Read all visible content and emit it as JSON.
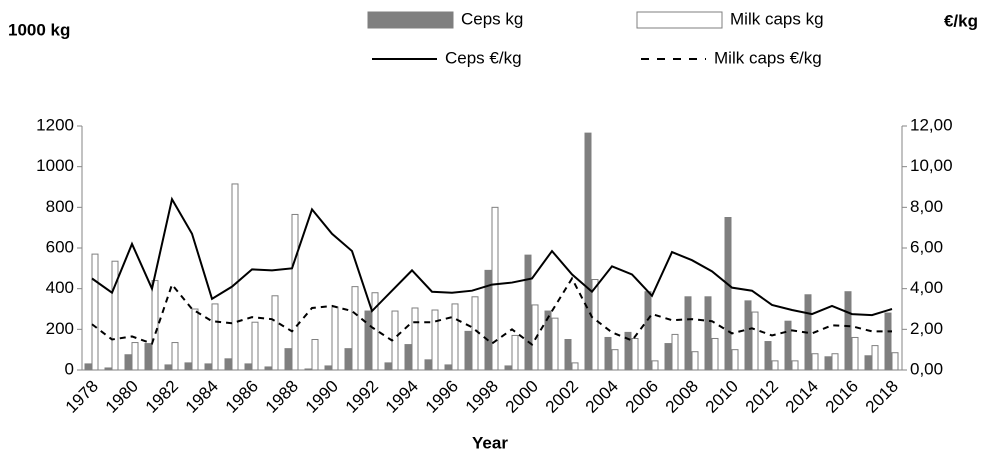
{
  "chart_data": {
    "type": "combo",
    "y_label": "1000 kg",
    "y2_label": "€/kg",
    "x_label": "Year",
    "categories": [
      "1978",
      null,
      "1980",
      null,
      "1982",
      null,
      "1984",
      null,
      "1986",
      null,
      "1988",
      null,
      "1990",
      null,
      "1992",
      null,
      "1994",
      null,
      "1996",
      null,
      "1998",
      null,
      "2000",
      null,
      "2002",
      null,
      "2004",
      null,
      "2006",
      null,
      "2008",
      null,
      "2010",
      null,
      "2012",
      null,
      "2014",
      null,
      "2016",
      null,
      "2018"
    ],
    "series": [
      {
        "name": "Ceps kg",
        "type": "bar",
        "color": "#7f7f7f",
        "fill": "#7f7f7f",
        "values": [
          30,
          10,
          75,
          130,
          25,
          35,
          30,
          55,
          30,
          15,
          105,
          5,
          20,
          105,
          290,
          35,
          125,
          50,
          25,
          190,
          490,
          20,
          565,
          290,
          150,
          1165,
          160,
          185,
          385,
          130,
          360,
          360,
          750,
          340,
          140,
          240,
          370,
          65,
          385,
          70,
          280
        ]
      },
      {
        "name": "Milk caps kg",
        "type": "bar",
        "color": "#7f7f7f",
        "fill": "#ffffff",
        "values": [
          570,
          535,
          135,
          440,
          135,
          300,
          325,
          915,
          235,
          365,
          765,
          150,
          310,
          410,
          380,
          290,
          305,
          295,
          325,
          360,
          800,
          170,
          320,
          255,
          35,
          445,
          100,
          155,
          45,
          175,
          90,
          155,
          100,
          285,
          45,
          45,
          80,
          80,
          160,
          120,
          85
        ]
      },
      {
        "name": "Ceps €/kg",
        "type": "line",
        "axis": "y2",
        "color": "#000000",
        "dashed": false,
        "values": [
          4.5,
          3.8,
          6.2,
          4.0,
          8.4,
          6.7,
          3.5,
          4.1,
          4.95,
          4.9,
          5.0,
          7.9,
          6.7,
          5.85,
          2.9,
          3.9,
          4.9,
          3.85,
          3.8,
          3.9,
          4.2,
          4.3,
          4.5,
          5.85,
          4.7,
          3.85,
          5.1,
          4.7,
          3.65,
          5.8,
          5.4,
          4.85,
          4.05,
          3.9,
          3.2,
          2.95,
          2.75,
          3.15,
          2.75,
          2.7,
          3.0
        ]
      },
      {
        "name": "Milk caps €/kg",
        "type": "line",
        "axis": "y2",
        "color": "#000000",
        "dashed": true,
        "values": [
          2.25,
          1.5,
          1.65,
          1.3,
          4.2,
          3.0,
          2.4,
          2.3,
          2.6,
          2.5,
          1.9,
          3.05,
          3.15,
          2.9,
          2.1,
          1.45,
          2.35,
          2.35,
          2.6,
          2.1,
          1.3,
          2.0,
          1.25,
          2.9,
          4.5,
          2.6,
          1.85,
          1.45,
          2.75,
          2.45,
          2.5,
          2.4,
          1.8,
          2.05,
          1.7,
          1.95,
          1.8,
          2.2,
          2.15,
          1.9,
          1.9
        ]
      }
    ],
    "ylim": [
      0,
      1200
    ],
    "yticks": [
      0,
      200,
      400,
      600,
      800,
      1000,
      1200
    ],
    "y2lim": [
      0,
      12
    ],
    "y2ticks": [
      {
        "value": 0,
        "label": "0,00"
      },
      {
        "value": 2,
        "label": "2,00"
      },
      {
        "value": 4,
        "label": "4,00"
      },
      {
        "value": 6,
        "label": "6,00"
      },
      {
        "value": 8,
        "label": "8,00"
      },
      {
        "value": 10,
        "label": "10,00"
      },
      {
        "value": 12,
        "label": "12,00"
      }
    ],
    "grid": false
  }
}
